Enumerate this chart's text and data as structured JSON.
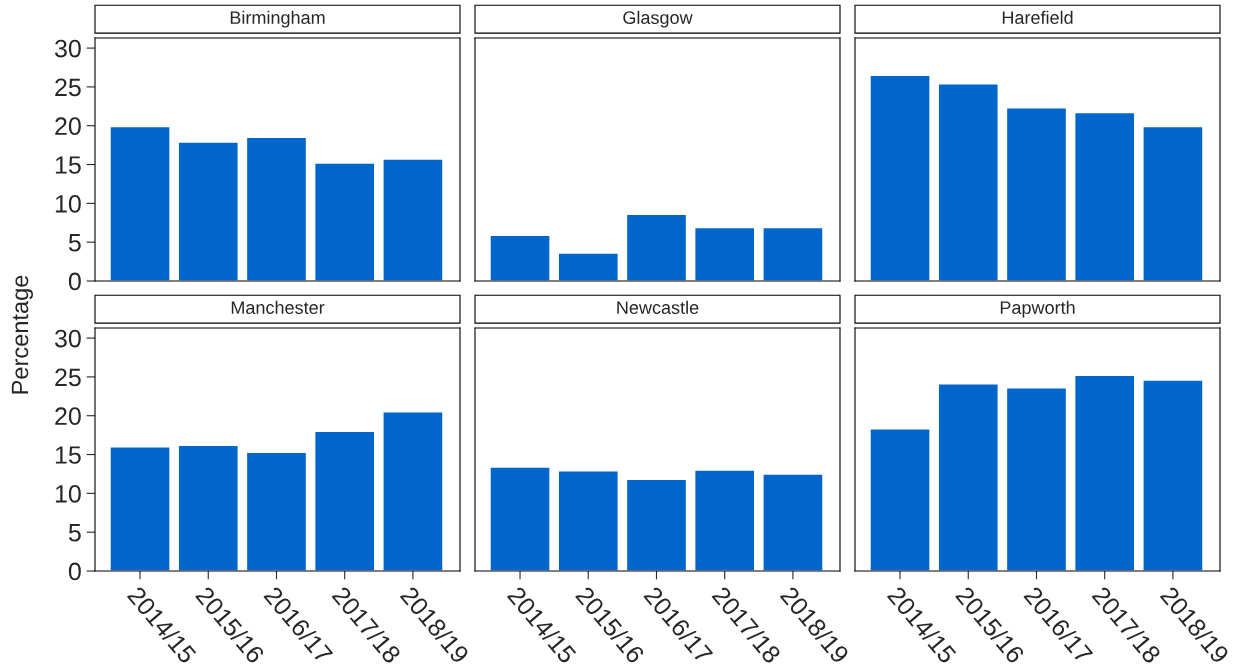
{
  "chart_data": [
    {
      "type": "bar",
      "title": "Birmingham",
      "ylabel": "Percentage",
      "categories": [
        "2014/15",
        "2015/16",
        "2016/17",
        "2017/18",
        "2018/19"
      ],
      "series": [
        {
          "color": "#0066cc",
          "values": [
            19.9,
            17.9,
            18.5,
            15.2,
            15.7
          ]
        }
      ],
      "ylim": [
        0,
        31.3
      ],
      "yticks": [
        0,
        5,
        10,
        15,
        20,
        25,
        30
      ],
      "tick_labels": "y",
      "grid": false,
      "legend": false
    },
    {
      "type": "bar",
      "title": "Glasgow",
      "categories": [
        "2014/15",
        "2015/16",
        "2016/17",
        "2017/18",
        "2018/19"
      ],
      "series": [
        {
          "color": "#0066cc",
          "values": [
            5.9,
            3.6,
            8.6,
            6.9,
            6.9
          ]
        }
      ],
      "ylim": [
        0,
        31.3
      ],
      "yticks": [
        0,
        5,
        10,
        15,
        20,
        25,
        30
      ],
      "tick_labels": false,
      "grid": false,
      "legend": false
    },
    {
      "type": "bar",
      "title": "Harefield",
      "categories": [
        "2014/15",
        "2015/16",
        "2016/17",
        "2017/18",
        "2018/19"
      ],
      "series": [
        {
          "color": "#0066cc",
          "values": [
            26.5,
            25.4,
            22.3,
            21.7,
            19.9
          ]
        }
      ],
      "ylim": [
        0,
        31.3
      ],
      "yticks": [
        0,
        5,
        10,
        15,
        20,
        25,
        30
      ],
      "tick_labels": false,
      "grid": false,
      "legend": false
    },
    {
      "type": "bar",
      "title": "Manchester",
      "categories": [
        "2014/15",
        "2015/16",
        "2016/17",
        "2017/18",
        "2018/19"
      ],
      "series": [
        {
          "color": "#0066cc",
          "values": [
            16.0,
            16.2,
            15.3,
            18.0,
            20.5
          ]
        }
      ],
      "ylim": [
        0,
        31.3
      ],
      "yticks": [
        0,
        5,
        10,
        15,
        20,
        25,
        30
      ],
      "grid": false,
      "legend": false
    },
    {
      "type": "bar",
      "title": "Newcastle",
      "categories": [
        "2014/15",
        "2015/16",
        "2016/17",
        "2017/18",
        "2018/19"
      ],
      "series": [
        {
          "color": "#0066cc",
          "values": [
            13.4,
            12.9,
            11.8,
            13.0,
            12.5
          ]
        }
      ],
      "ylim": [
        0,
        31.3
      ],
      "yticks": [
        0,
        5,
        10,
        15,
        20,
        25,
        30
      ],
      "tick_labels": "x",
      "grid": false,
      "legend": false
    },
    {
      "type": "bar",
      "title": "Papworth",
      "categories": [
        "2014/15",
        "2015/16",
        "2016/17",
        "2017/18",
        "2018/19"
      ],
      "series": [
        {
          "color": "#0066cc",
          "values": [
            18.3,
            24.1,
            23.6,
            25.2,
            24.6
          ]
        }
      ],
      "ylim": [
        0,
        31.3
      ],
      "yticks": [
        0,
        5,
        10,
        15,
        20,
        25,
        30
      ],
      "tick_labels": "x",
      "grid": false,
      "legend": false
    }
  ]
}
